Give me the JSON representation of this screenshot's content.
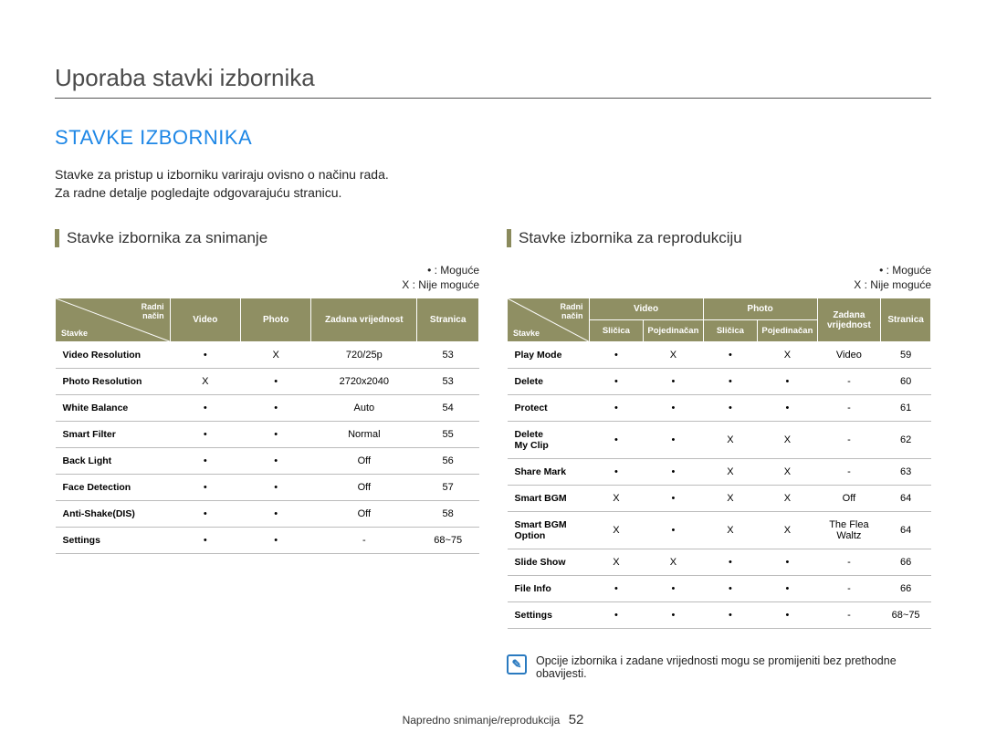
{
  "page_title": "Uporaba stavki izbornika",
  "section_title": "STAVKE IZBORNIKA",
  "intro_line1": "Stavke za pristup u izborniku variraju ovisno o načinu rada.",
  "intro_line2": "Za radne detalje pogledajte odgovarajuću stranicu.",
  "legend_possible": "• : Moguće",
  "legend_not_possible": "X : Nije moguće",
  "left": {
    "subtitle": "Stavke izbornika za snimanje",
    "diag_top": "Radni\nnačin",
    "diag_bottom": "Stavke",
    "headers": {
      "video": "Video",
      "photo": "Photo",
      "default": "Zadana vrijednost",
      "page": "Stranica"
    },
    "rows": [
      {
        "name": "Video Resolution",
        "video": "•",
        "photo": "X",
        "default": "720/25p",
        "page": "53"
      },
      {
        "name": "Photo Resolution",
        "video": "X",
        "photo": "•",
        "default": "2720x2040",
        "page": "53"
      },
      {
        "name": "White Balance",
        "video": "•",
        "photo": "•",
        "default": "Auto",
        "page": "54"
      },
      {
        "name": "Smart Filter",
        "video": "•",
        "photo": "•",
        "default": "Normal",
        "page": "55"
      },
      {
        "name": "Back Light",
        "video": "•",
        "photo": "•",
        "default": "Off",
        "page": "56"
      },
      {
        "name": "Face Detection",
        "video": "•",
        "photo": "•",
        "default": "Off",
        "page": "57"
      },
      {
        "name": "Anti-Shake(DIS)",
        "video": "•",
        "photo": "•",
        "default": "Off",
        "page": "58"
      },
      {
        "name": "Settings",
        "video": "•",
        "photo": "•",
        "default": "-",
        "page": "68~75"
      }
    ]
  },
  "right": {
    "subtitle": "Stavke izbornika za reprodukciju",
    "diag_top": "Radni\nnačin",
    "diag_bottom": "Stavke",
    "headers": {
      "video": "Video",
      "photo": "Photo",
      "thumb": "Sličica",
      "single": "Pojedinačan",
      "default": "Zadana vrijednost",
      "page": "Stranica"
    },
    "rows": [
      {
        "name": "Play Mode",
        "vt": "•",
        "vs": "X",
        "pt": "•",
        "ps": "X",
        "default": "Video",
        "page": "59"
      },
      {
        "name": "Delete",
        "vt": "•",
        "vs": "•",
        "pt": "•",
        "ps": "•",
        "default": "-",
        "page": "60"
      },
      {
        "name": "Protect",
        "vt": "•",
        "vs": "•",
        "pt": "•",
        "ps": "•",
        "default": "-",
        "page": "61"
      },
      {
        "name": "Delete My Clip",
        "vt": "•",
        "vs": "•",
        "pt": "X",
        "ps": "X",
        "default": "-",
        "page": "62"
      },
      {
        "name": "Share Mark",
        "vt": "•",
        "vs": "•",
        "pt": "X",
        "ps": "X",
        "default": "-",
        "page": "63"
      },
      {
        "name": "Smart BGM",
        "vt": "X",
        "vs": "•",
        "pt": "X",
        "ps": "X",
        "default": "Off",
        "page": "64"
      },
      {
        "name": "Smart BGM Option",
        "vt": "X",
        "vs": "•",
        "pt": "X",
        "ps": "X",
        "default": "The Flea Waltz",
        "page": "64"
      },
      {
        "name": "Slide Show",
        "vt": "X",
        "vs": "X",
        "pt": "•",
        "ps": "•",
        "default": "-",
        "page": "66"
      },
      {
        "name": "File Info",
        "vt": "•",
        "vs": "•",
        "pt": "•",
        "ps": "•",
        "default": "-",
        "page": "66"
      },
      {
        "name": "Settings",
        "vt": "•",
        "vs": "•",
        "pt": "•",
        "ps": "•",
        "default": "-",
        "page": "68~75"
      }
    ]
  },
  "note_text": "Opcije izbornika i zadane vrijednosti mogu se promijeniti bez prethodne obavijesti.",
  "footer_text": "Napredno snimanje/reprodukcija",
  "page_num": "52"
}
